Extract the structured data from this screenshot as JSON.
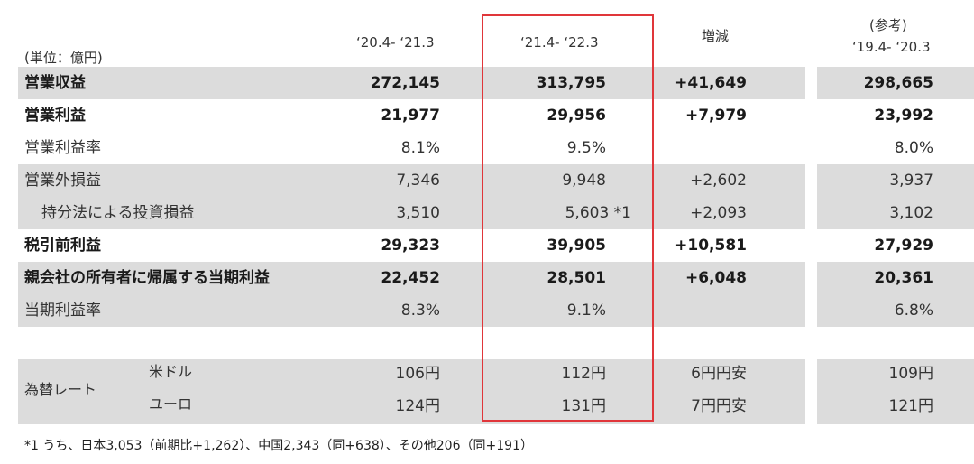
{
  "header": {
    "col1": "‘20.4- ‘21.3",
    "col2": "‘21.4- ‘22.3",
    "col3": "増減",
    "col4_line1": "(参考)",
    "col4_line2": "‘19.4- ‘20.3",
    "unit": "(単位：億円)"
  },
  "rows": [
    {
      "label": "営業収益",
      "v1": "272,145",
      "v2": "313,795",
      "v3": "+41,649",
      "v4": "298,665"
    },
    {
      "label": "営業利益",
      "v1": "21,977",
      "v2": "29,956",
      "v3": "+7,979",
      "v4": "23,992"
    },
    {
      "label": "営業利益率",
      "v1": "8.1%",
      "v2": "9.5%",
      "v3": "",
      "v4": "8.0%"
    },
    {
      "label": "営業外損益",
      "v1": "7,346",
      "v2": "9,948",
      "v3": "+2,602",
      "v4": "3,937"
    },
    {
      "label": "持分法による投資損益",
      "v1": "3,510",
      "v2": "5,603 *1",
      "v3": "+2,093",
      "v4": "3,102"
    },
    {
      "label": "税引前利益",
      "v1": "29,323",
      "v2": "39,905",
      "v3": "+10,581",
      "v4": "27,929"
    },
    {
      "label": "親会社の所有者に帰属する当期利益",
      "v1": "22,452",
      "v2": "28,501",
      "v3": "+6,048",
      "v4": "20,361"
    },
    {
      "label": "当期利益率",
      "v1": "8.3%",
      "v2": "9.1%",
      "v3": "",
      "v4": "6.8%"
    }
  ],
  "fx": {
    "label": "為替レート",
    "usd": {
      "label": "米ドル",
      "v1": "106円",
      "v2": "112円",
      "v3": "6円円安",
      "v4": "109円"
    },
    "eur": {
      "label": "ユーロ",
      "v1": "124円",
      "v2": "131円",
      "v3": "7円円安",
      "v4": "121円"
    }
  },
  "footnote": "*1 うち、日本3,053（前期比+1,262）、中国2,343（同+638）、その他206（同+191）",
  "colors": {
    "band": "#dcdcdc",
    "highlight": "#e0363a"
  }
}
